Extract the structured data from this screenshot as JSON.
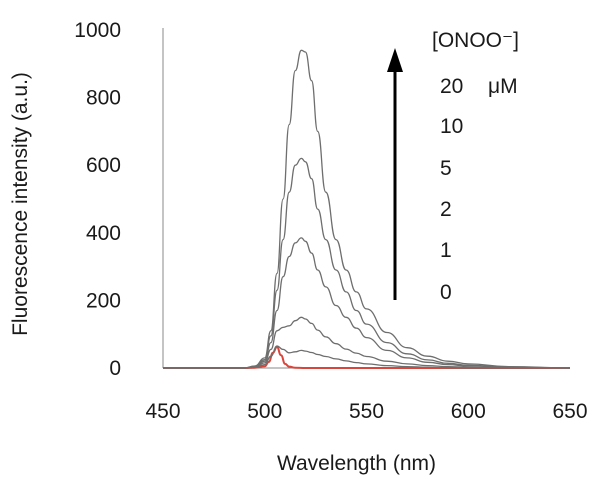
{
  "chart_data": {
    "type": "line",
    "title": "",
    "xlabel": "Wavelength (nm)",
    "ylabel": "Fluorescence intensity (a.u.)",
    "xlim": [
      450,
      650
    ],
    "ylim": [
      0,
      1000
    ],
    "xticks": [
      450,
      500,
      550,
      600,
      650
    ],
    "yticks": [
      0,
      200,
      400,
      600,
      800,
      1000
    ],
    "legend": {
      "title": "[ONOO⁻]",
      "unit": "μM",
      "arrow": "up",
      "placement": "top-right",
      "labels": [
        "20",
        "10",
        "5",
        "2",
        "1",
        "0"
      ]
    },
    "series": [
      {
        "name": "20",
        "color": "#6e6e6e",
        "x": [
          450,
          490,
          495,
          500,
          503,
          506,
          509,
          512,
          515,
          518,
          520,
          523,
          526,
          530,
          535,
          540,
          545,
          550,
          560,
          570,
          580,
          590,
          600,
          620,
          650
        ],
        "y": [
          0,
          0,
          6,
          30,
          110,
          280,
          500,
          720,
          880,
          940,
          935,
          850,
          700,
          520,
          380,
          290,
          225,
          175,
          105,
          60,
          35,
          20,
          12,
          4,
          0
        ]
      },
      {
        "name": "10",
        "color": "#6e6e6e",
        "x": [
          450,
          490,
          495,
          500,
          503,
          506,
          509,
          512,
          515,
          518,
          520,
          523,
          526,
          530,
          535,
          540,
          545,
          550,
          560,
          570,
          580,
          590,
          600,
          620,
          650
        ],
        "y": [
          0,
          0,
          5,
          25,
          95,
          230,
          380,
          520,
          600,
          620,
          610,
          560,
          470,
          380,
          290,
          225,
          170,
          130,
          75,
          42,
          24,
          14,
          8,
          3,
          0
        ]
      },
      {
        "name": "5",
        "color": "#6e6e6e",
        "x": [
          450,
          490,
          495,
          500,
          503,
          506,
          509,
          512,
          515,
          518,
          520,
          523,
          526,
          530,
          535,
          540,
          545,
          550,
          560,
          570,
          580,
          590,
          600,
          620,
          650
        ],
        "y": [
          0,
          0,
          4,
          20,
          75,
          170,
          270,
          330,
          370,
          385,
          375,
          340,
          290,
          240,
          185,
          150,
          118,
          90,
          52,
          30,
          17,
          10,
          6,
          2,
          0
        ]
      },
      {
        "name": "2",
        "color": "#6e6e6e",
        "x": [
          450,
          490,
          495,
          500,
          503,
          506,
          509,
          512,
          515,
          518,
          520,
          523,
          526,
          530,
          535,
          540,
          545,
          550,
          560,
          570,
          580,
          590,
          600,
          620,
          650
        ],
        "y": [
          0,
          0,
          3,
          15,
          55,
          110,
          120,
          125,
          140,
          150,
          145,
          132,
          112,
          92,
          72,
          56,
          44,
          34,
          20,
          12,
          7,
          4,
          2,
          1,
          0
        ]
      },
      {
        "name": "1",
        "color": "#6e6e6e",
        "x": [
          450,
          490,
          495,
          500,
          503,
          506,
          509,
          512,
          515,
          518,
          520,
          523,
          526,
          530,
          535,
          540,
          545,
          550,
          560,
          570,
          580,
          590,
          600,
          620,
          650
        ],
        "y": [
          0,
          0,
          2,
          10,
          35,
          65,
          55,
          45,
          48,
          52,
          50,
          46,
          40,
          34,
          27,
          21,
          16,
          12,
          7,
          4,
          2,
          1,
          0,
          0,
          0
        ]
      },
      {
        "name": "0",
        "color": "#d9453a",
        "x": [
          450,
          490,
          495,
          500,
          502,
          504,
          506,
          508,
          510,
          512,
          515,
          520,
          530,
          560,
          600,
          650
        ],
        "y": [
          0,
          0,
          1,
          5,
          18,
          45,
          62,
          38,
          12,
          4,
          1,
          0,
          0,
          0,
          0,
          0
        ]
      }
    ]
  }
}
